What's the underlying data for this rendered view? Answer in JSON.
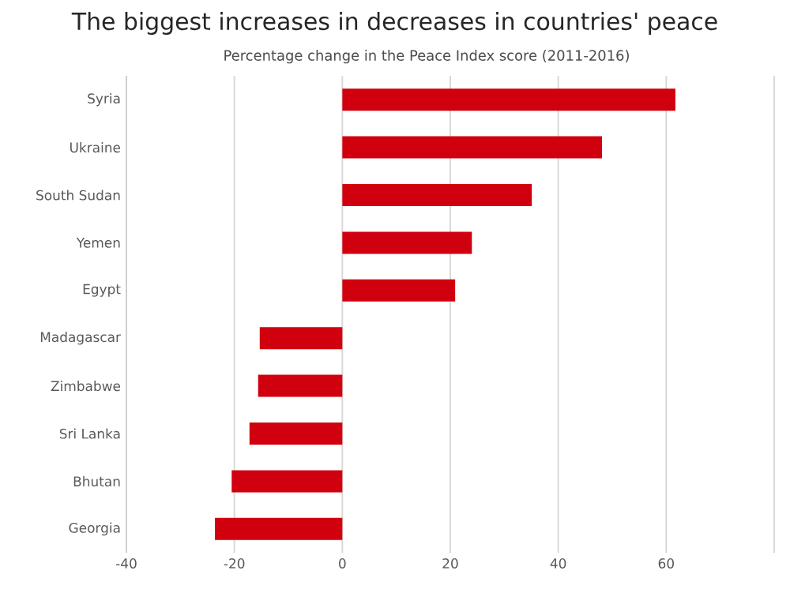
{
  "chart_data": {
    "type": "bar",
    "orientation": "horizontal",
    "title": "The biggest increases in decreases in countries' peace",
    "subtitle": "Percentage change in the Peace Index score (2011-2016)",
    "categories": [
      "Syria",
      "Ukraine",
      "South Sudan",
      "Yemen",
      "Egypt",
      "Madagascar",
      "Zimbabwe",
      "Sri Lanka",
      "Bhutan",
      "Georgia"
    ],
    "values": [
      61.7,
      48.1,
      35.1,
      24,
      20.9,
      -15.3,
      -15.6,
      -17.2,
      -20.5,
      -23.6
    ],
    "color": "#d0000e",
    "xlim": [
      -40,
      80
    ],
    "xticks": [
      -40,
      -20,
      0,
      20,
      40,
      60,
      {
        "value": 80,
        "label": null
      }
    ],
    "grid": "x"
  }
}
